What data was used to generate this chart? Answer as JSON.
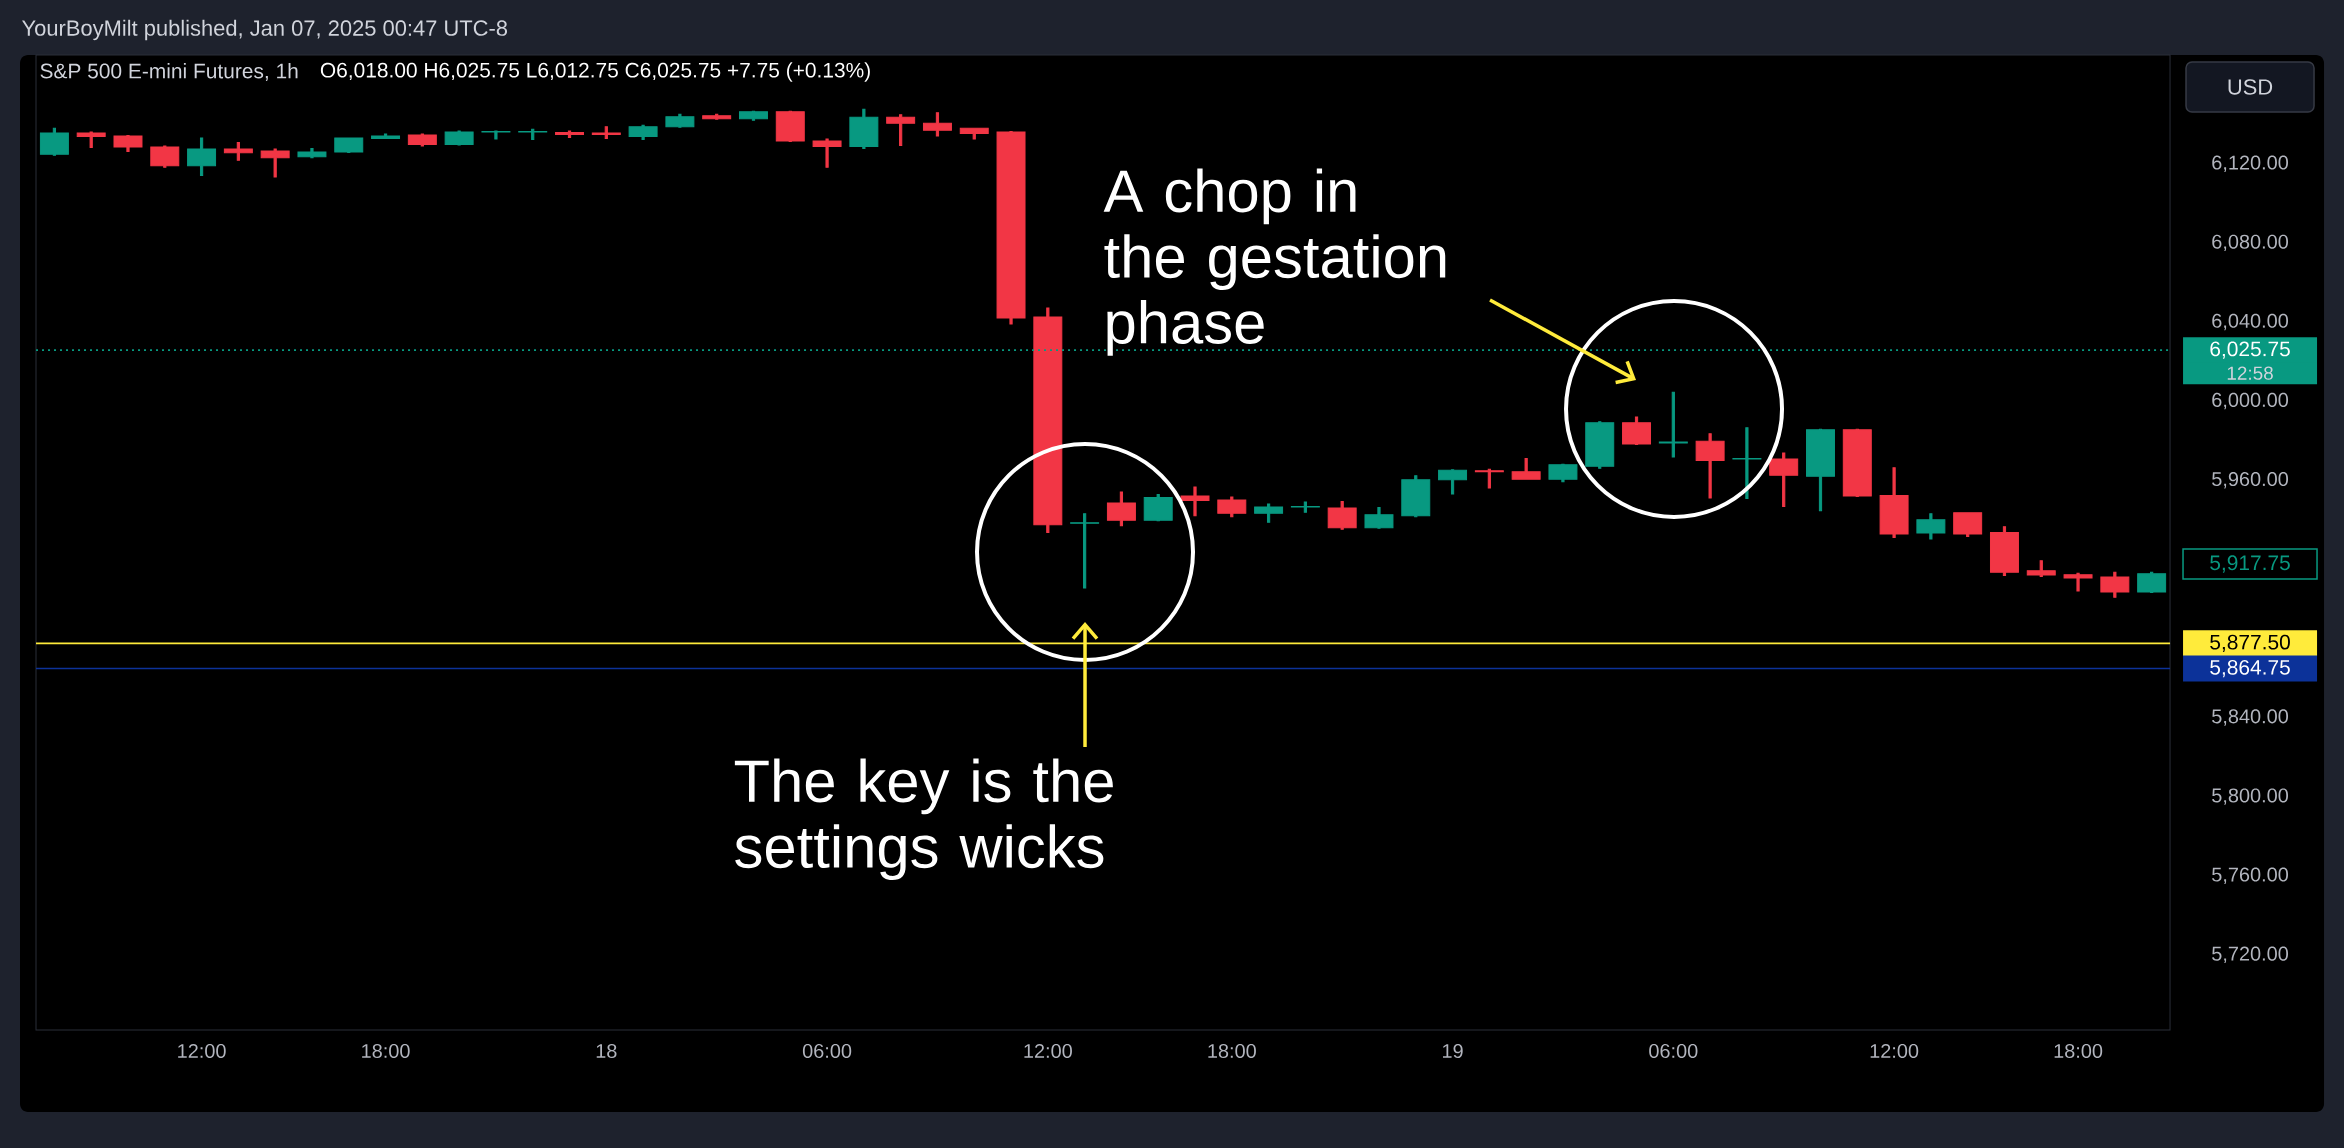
{
  "chart_data": {
    "type": "candlestick",
    "title": "S&P 500 E-mini Futures, 1h",
    "subtitle": "O6,018.00 H6,025.75 L6,012.75 C6,025.75 +7.75 (+0.13%)",
    "categories": [
      null,
      null,
      null,
      null,
      "12:00",
      null,
      null,
      null,
      null,
      "18:00",
      null,
      null,
      null,
      null,
      null,
      "18",
      null,
      null,
      null,
      null,
      null,
      "06:00",
      null,
      null,
      null,
      null,
      null,
      "12:00",
      null,
      null,
      null,
      null,
      "18:00",
      null,
      null,
      null,
      null,
      null,
      "19",
      null,
      null,
      null,
      null,
      null,
      "06:00",
      null,
      null,
      null,
      null,
      null,
      "12:00",
      null,
      null,
      null,
      null,
      "18:00",
      null,
      null
    ],
    "ohlc": [
      [
        6124.75,
        6138,
        6124.25,
        6135.5
      ],
      [
        6135.5,
        6136,
        6128.25,
        6133.75
      ],
      [
        6134,
        6134.25,
        6126.25,
        6128.5
      ],
      [
        6128.5,
        6129,
        6118.25,
        6119
      ],
      [
        6119,
        6133,
        6114,
        6127.5
      ],
      [
        6127.5,
        6130.75,
        6121.75,
        6125.5
      ],
      [
        6126.5,
        6127.5,
        6113.25,
        6123
      ],
      [
        6123.5,
        6127.75,
        6123,
        6126
      ],
      [
        6126,
        6133,
        6125.75,
        6133
      ],
      [
        6132.75,
        6135,
        6132.75,
        6134
      ],
      [
        6134.5,
        6135,
        6129,
        6129.75
      ],
      [
        6129.75,
        6136.5,
        6129.5,
        6136
      ],
      [
        6136,
        6136.5,
        6132.5,
        6136.25
      ],
      [
        6136,
        6137.5,
        6132.25,
        6136.25
      ],
      [
        6135.75,
        6136.5,
        6133.25,
        6134.75
      ],
      [
        6135.5,
        6138.75,
        6132.75,
        6134.75
      ],
      [
        6133.75,
        6139.5,
        6132.25,
        6138.75
      ],
      [
        6138.75,
        6145,
        6138.5,
        6143.75
      ],
      [
        6144.25,
        6145,
        6142.5,
        6142.75
      ],
      [
        6142.75,
        6146.5,
        6142,
        6146.25
      ],
      [
        6146.25,
        6146.5,
        6131.25,
        6131.5
      ],
      [
        6131.5,
        6132.5,
        6118.25,
        6128.75
      ],
      [
        6128.75,
        6147.5,
        6127.75,
        6143.5
      ],
      [
        6143.5,
        6144.75,
        6129.25,
        6140.5
      ],
      [
        6140.5,
        6145.75,
        6134,
        6137
      ],
      [
        6138,
        6138,
        6132.5,
        6135.25
      ],
      [
        6136,
        6136.25,
        6039,
        6042
      ],
      [
        6042.5,
        6047,
        5933.5,
        5937.5
      ],
      [
        5938.25,
        5943,
        5905.5,
        5938.5
      ],
      [
        5948.5,
        5954,
        5937,
        5939.75
      ],
      [
        5939.75,
        5952.75,
        5939.5,
        5951.25
      ],
      [
        5952,
        5956.5,
        5942,
        5949.75
      ],
      [
        5950,
        5951.5,
        5941.5,
        5943.25
      ],
      [
        5943.25,
        5948,
        5938.75,
        5946.5
      ],
      [
        5946.5,
        5949,
        5943.75,
        5946.75
      ],
      [
        5946,
        5949.25,
        5935.25,
        5936
      ],
      [
        5936,
        5946.25,
        5935.75,
        5942.5
      ],
      [
        5942,
        5962.25,
        5941.5,
        5960.25
      ],
      [
        5960.25,
        5965.25,
        5953,
        5965
      ],
      [
        5964.75,
        5965.5,
        5956,
        5964.25
      ],
      [
        5964.25,
        5971,
        5960.5,
        5960.5
      ],
      [
        5960.5,
        5968,
        5959.25,
        5967.75
      ],
      [
        5967,
        5989.5,
        5966,
        5989
      ],
      [
        5989,
        5992,
        5978,
        5978.25
      ],
      [
        5978.75,
        6004.5,
        5971.75,
        5979.25
      ],
      [
        5979.75,
        5983.5,
        5951,
        5970
      ],
      [
        5970.75,
        5986.5,
        5950.75,
        5971
      ],
      [
        5970.75,
        5973.75,
        5946.75,
        5962.5
      ],
      [
        5962,
        5985.75,
        5944.5,
        5985.5
      ],
      [
        5985.5,
        5985.75,
        5951.75,
        5952
      ],
      [
        5952.25,
        5966.25,
        5931,
        5932.75
      ],
      [
        5933.25,
        5943,
        5930.25,
        5940
      ],
      [
        5943.5,
        5943.5,
        5931.5,
        5932.75
      ],
      [
        5933.5,
        5936.5,
        5911.75,
        5913.5
      ],
      [
        5914.25,
        5919.25,
        5911.25,
        5912
      ],
      [
        5912.25,
        5913,
        5904,
        5910.5
      ],
      [
        5911,
        5913.5,
        5900.75,
        5903.5
      ],
      [
        5903.5,
        5913.5,
        5903.25,
        5912.75
      ]
    ],
    "colors": [
      "#089981",
      "#f23645",
      "#f23645",
      "#f23645",
      "#089981",
      "#f23645",
      "#f23645",
      "#089981",
      "#089981",
      "#089981",
      "#f23645",
      "#089981",
      "#089981",
      "#089981",
      "#f23645",
      "#f23645",
      "#089981",
      "#089981",
      "#f23645",
      "#089981",
      "#f23645",
      "#f23645",
      "#089981",
      "#f23645",
      "#f23645",
      "#f23645",
      "#f23645",
      "#f23645",
      "#089981",
      "#f23645",
      "#089981",
      "#f23645",
      "#f23645",
      "#089981",
      "#089981",
      "#f23645",
      "#089981",
      "#089981",
      "#089981",
      "#f23645",
      "#f23645",
      "#089981",
      "#089981",
      "#f23645",
      "#089981",
      "#f23645",
      "#089981",
      "#f23645",
      "#089981",
      "#f23645",
      "#f23645",
      "#089981",
      "#f23645",
      "#f23645",
      "#f23645",
      "#f23645",
      "#f23645",
      "#089981"
    ],
    "ylim": [
      5682,
      6175
    ],
    "yticks": [
      {
        "value": 5720,
        "label": "5,720.00"
      },
      {
        "value": 5760,
        "label": "5,760.00"
      },
      {
        "value": 5800,
        "label": "5,800.00"
      },
      {
        "value": 5840,
        "label": "5,840.00"
      },
      {
        "value": 5960,
        "label": "5,960.00"
      },
      {
        "value": 6000,
        "label": "6,000.00"
      },
      {
        "value": 6040,
        "label": "6,040.00"
      },
      {
        "value": 6080,
        "label": "6,080.00"
      },
      {
        "value": 6120,
        "label": "6,120.00"
      }
    ],
    "ref_lines": [
      {
        "axis": "y",
        "value": 6025.75,
        "label": "6,025.75",
        "color": "#089981",
        "line_style": "dotted"
      },
      {
        "axis": "y",
        "value": 5877.5,
        "label": "5,877.50",
        "color": "#ffeb3b",
        "line_style": "solid"
      },
      {
        "axis": "y",
        "value": 5864.75,
        "label": "5,864.75",
        "color": "#0c3299",
        "line_style": "solid"
      }
    ],
    "annotations": [
      "YourBoyMilt published, Jan 07, 2025 00:47 UTC-8",
      "A chop in the gestation phase",
      "The key is the settings wicks",
      "USD",
      "12:58",
      "5,917.75"
    ]
  }
}
